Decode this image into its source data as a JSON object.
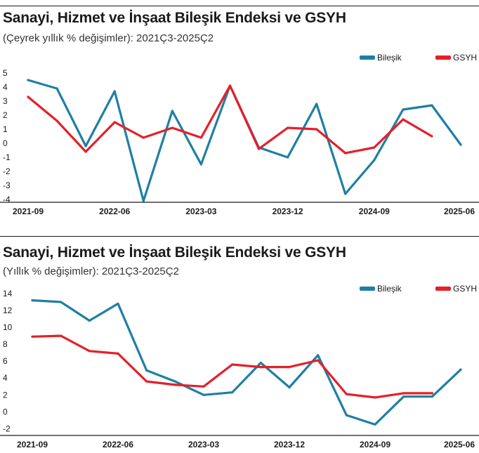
{
  "charts": [
    {
      "title": "Sanayi, Hizmet ve İnşaat Bileşik Endeksi ve GSYH",
      "subtitle": "(Çeyrek yıllık % değişimler): 2021Ç3-2025Ç2"
    },
    {
      "title": "Sanayi, Hizmet ve İnşaat Bileşik Endeksi ve GSYH",
      "subtitle": "(Yıllık % değişimler): 2021Ç3-2025Ç2"
    }
  ],
  "chart_data": [
    {
      "type": "line",
      "title": "Sanayi, Hizmet ve İnşaat Bileşik Endeksi ve GSYH",
      "subtitle": "(Çeyrek yıllık % değişimler): 2021Ç3-2025Ç2",
      "x_tick_labels": [
        "2021-09",
        "2022-06",
        "2023-03",
        "2023-12",
        "2024-09",
        "2025-06"
      ],
      "y_ticks": [
        5,
        4,
        3,
        2,
        1,
        0,
        -1,
        -2,
        -3,
        -4
      ],
      "y_tick_labels": [
        "5",
        "4",
        "3",
        "2",
        "1",
        "0",
        "-1",
        "-2",
        "-3",
        "-4"
      ],
      "ylim": [
        -4.2,
        5.2
      ],
      "legend_position": "top-right",
      "x": [
        "2021-09",
        "2021-12",
        "2022-03",
        "2022-06",
        "2022-09",
        "2022-12",
        "2023-03",
        "2023-06",
        "2023-09",
        "2023-12",
        "2024-03",
        "2024-06",
        "2024-09",
        "2024-12",
        "2025-03",
        "2025-06"
      ],
      "series": [
        {
          "name": "Bileşik",
          "color": "#1f7fa3",
          "values": [
            4.5,
            3.9,
            -0.2,
            3.7,
            -4.1,
            2.3,
            -1.5,
            4.1,
            -0.3,
            -1.0,
            2.8,
            -3.6,
            -1.2,
            2.4,
            2.7,
            -0.1
          ]
        },
        {
          "name": "GSYH",
          "color": "#e4202a",
          "values": [
            3.3,
            1.6,
            -0.6,
            1.5,
            0.4,
            1.1,
            0.4,
            4.1,
            -0.4,
            1.1,
            1.0,
            -0.7,
            -0.3,
            1.7,
            0.5,
            null
          ]
        }
      ]
    },
    {
      "type": "line",
      "title": "Sanayi, Hizmet ve İnşaat Bileşik Endeksi ve GSYH",
      "subtitle": "(Yıllık % değişimler): 2021Ç3-2025Ç2",
      "x_tick_labels": [
        "2021-09",
        "2022-06",
        "2023-03",
        "2023-12",
        "2024-09",
        "2025-06"
      ],
      "y_ticks": [
        14,
        12,
        10,
        8,
        6,
        4,
        2,
        0,
        -2
      ],
      "y_tick_labels": [
        "14",
        "12",
        "10",
        "8",
        "6",
        "4",
        "2",
        "0",
        "-2"
      ],
      "ylim": [
        -2.8,
        14.5
      ],
      "legend_position": "top-right",
      "x": [
        "2021-09",
        "2021-12",
        "2022-03",
        "2022-06",
        "2022-09",
        "2022-12",
        "2023-03",
        "2023-06",
        "2023-09",
        "2023-12",
        "2024-03",
        "2024-06",
        "2024-09",
        "2024-12",
        "2025-03",
        "2025-06"
      ],
      "series": [
        {
          "name": "Bileşik",
          "color": "#1f7fa3",
          "values": [
            13.2,
            13.0,
            10.8,
            12.8,
            4.9,
            3.6,
            2.0,
            2.3,
            5.8,
            2.9,
            6.7,
            -0.4,
            -1.5,
            1.8,
            1.8,
            5.0
          ]
        },
        {
          "name": "GSYH",
          "color": "#e4202a",
          "values": [
            8.9,
            9.0,
            7.2,
            6.9,
            3.6,
            3.2,
            3.0,
            5.6,
            5.3,
            5.3,
            6.1,
            2.1,
            1.7,
            2.2,
            2.2,
            null
          ]
        }
      ]
    }
  ]
}
